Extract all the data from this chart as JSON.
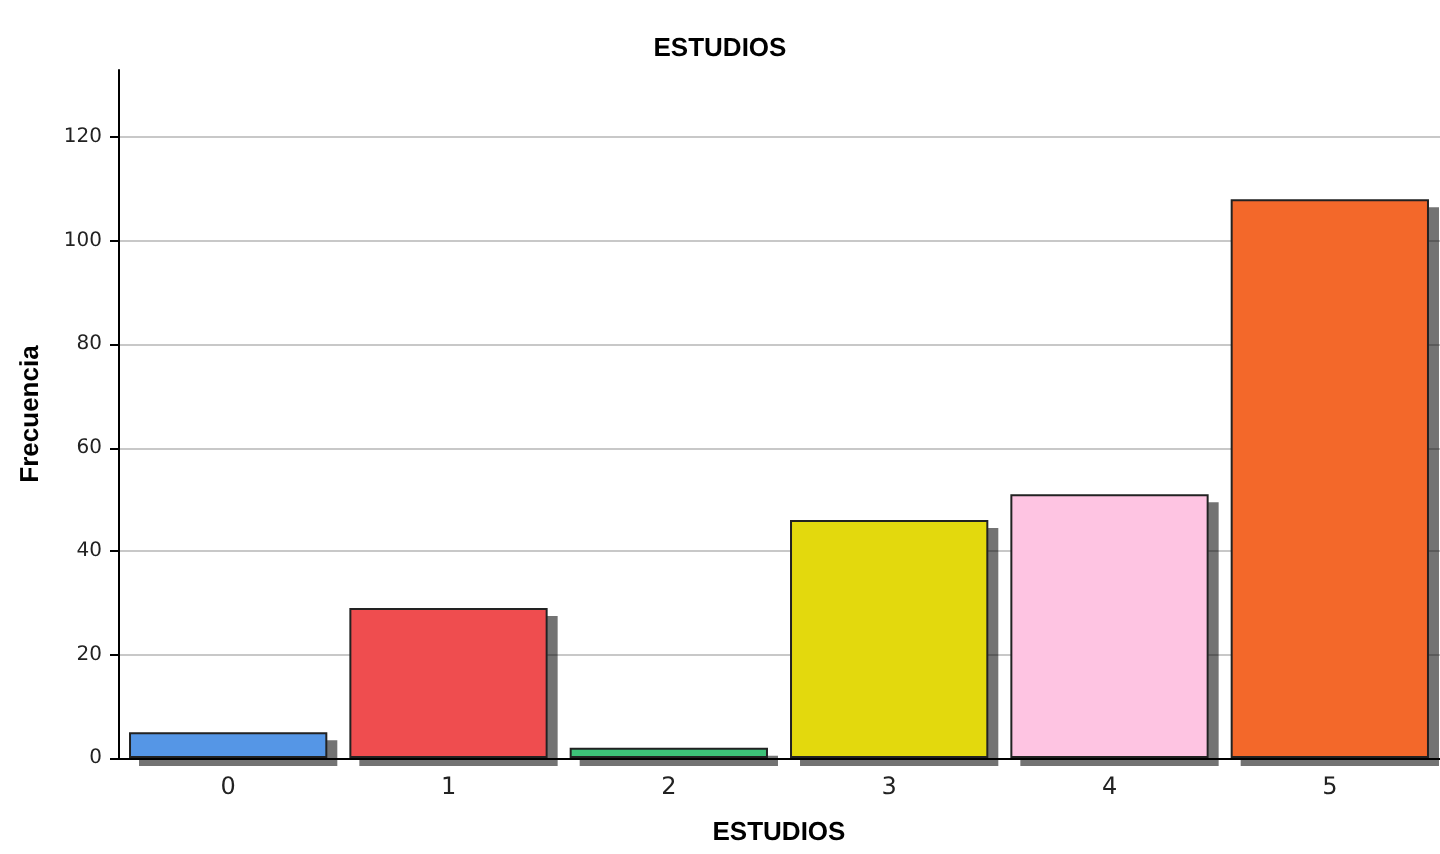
{
  "chart_data": {
    "type": "bar",
    "title": "ESTUDIOS",
    "xlabel": "ESTUDIOS",
    "ylabel": "Frecuencia",
    "categories": [
      "0",
      "1",
      "2",
      "3",
      "4",
      "5"
    ],
    "values": [
      5,
      29,
      2,
      46,
      51,
      108
    ],
    "colors": [
      "#5596e6",
      "#ef4e4f",
      "#3ec178",
      "#e3d90e",
      "#fec4e2",
      "#f3672c"
    ],
    "ylim": [
      0,
      133
    ],
    "yticks": [
      0,
      20,
      40,
      60,
      80,
      100,
      120
    ],
    "grid": "y"
  }
}
